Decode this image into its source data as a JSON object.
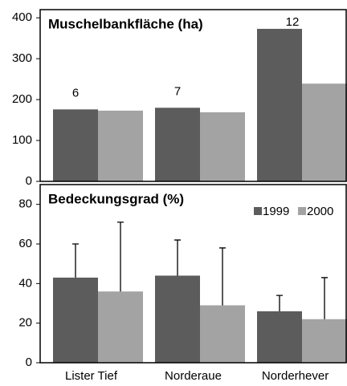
{
  "chart_data": [
    {
      "type": "bar",
      "title": "Muschelbankfläche (ha)",
      "group_labels": [
        6,
        7,
        12
      ],
      "series": [
        {
          "name": "1999",
          "color": "#5c5c5c",
          "values": [
            176,
            180,
            373
          ]
        },
        {
          "name": "2000",
          "color": "#a3a3a3",
          "values": [
            173,
            169,
            239
          ]
        }
      ],
      "ylim": [
        0,
        420
      ],
      "yticks": [
        0,
        100,
        200,
        300,
        400
      ]
    },
    {
      "type": "bar",
      "title": "Bedeckungsgrad (%)",
      "categories": [
        "Lister Tief",
        "Norderaue",
        "Norderhever"
      ],
      "series": [
        {
          "name": "1999",
          "color": "#5c5c5c",
          "values": [
            43,
            44,
            26
          ],
          "errors": [
            17,
            18,
            8
          ]
        },
        {
          "name": "2000",
          "color": "#a3a3a3",
          "values": [
            36,
            29,
            22
          ],
          "errors": [
            35,
            29,
            21
          ]
        }
      ],
      "ylim": [
        0,
        90
      ],
      "yticks": [
        0,
        20,
        40,
        60,
        80
      ],
      "legend": "top-right"
    }
  ]
}
